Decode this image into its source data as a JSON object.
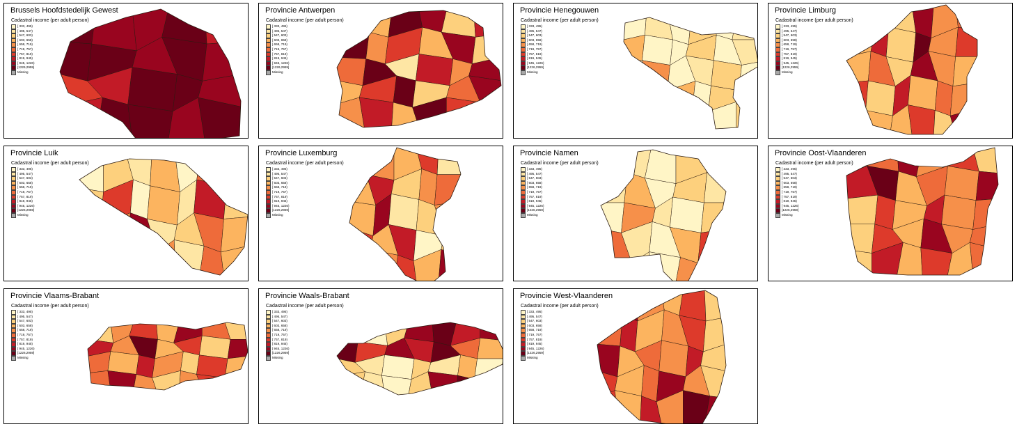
{
  "figure": {
    "legend_title": "Cadastral income (per adult person)",
    "legend": [
      {
        "label": "[ 333, 495)",
        "color": "#fff5c6"
      },
      {
        "label": "[ 495, 547)",
        "color": "#fee6a4"
      },
      {
        "label": "[ 547, 603)",
        "color": "#fdd07d"
      },
      {
        "label": "[ 603, 658)",
        "color": "#fcb45f"
      },
      {
        "label": "[ 658, 719)",
        "color": "#f6904a"
      },
      {
        "label": "[ 719, 757)",
        "color": "#ee6b3a"
      },
      {
        "label": "[ 757, 819)",
        "color": "#dd3a2b"
      },
      {
        "label": "[ 819, 945)",
        "color": "#c21b27"
      },
      {
        "label": "[ 945, 1226)",
        "color": "#99051f"
      },
      {
        "label": "[1226,2959]",
        "color": "#6a0017"
      },
      {
        "label": "Missing",
        "color": "#a8a8a8"
      }
    ]
  },
  "panels": [
    {
      "title": "Brussels Hoofdstedelijk Gewest",
      "region_classes": [
        9,
        8,
        8,
        9,
        7,
        9,
        9,
        8,
        9,
        8,
        6,
        7,
        9,
        9,
        8,
        7,
        9,
        9,
        8
      ]
    },
    {
      "title": "Provincie Antwerpen",
      "region_classes": [
        5,
        3,
        9,
        8,
        2,
        7,
        9,
        4,
        6,
        3,
        8,
        2,
        5,
        9,
        1,
        7,
        4,
        8,
        3,
        6,
        9,
        2,
        5,
        8,
        4,
        7,
        3,
        9,
        6,
        2
      ]
    },
    {
      "title": "Provincie Henegouwen",
      "region_classes": [
        0,
        1,
        0,
        2,
        0,
        1,
        3,
        0,
        0,
        2,
        0,
        1,
        0,
        4,
        0,
        1,
        2,
        0,
        0,
        1,
        3,
        0,
        2,
        1,
        0,
        5,
        0,
        1,
        0,
        2
      ]
    },
    {
      "title": "Provincie Limburg",
      "region_classes": [
        3,
        6,
        2,
        8,
        4,
        5,
        3,
        7,
        2,
        9,
        4,
        6,
        3,
        5,
        2,
        8,
        4,
        3,
        6,
        2,
        7,
        3,
        5,
        4,
        6,
        3
      ]
    },
    {
      "title": "Provincie Luik",
      "region_classes": [
        0,
        2,
        1,
        3,
        0,
        5,
        1,
        2,
        6,
        0,
        3,
        1,
        7,
        2,
        0,
        4,
        8,
        1,
        2,
        5,
        3,
        6,
        2,
        7,
        4,
        1,
        5,
        3
      ]
    },
    {
      "title": "Provincie Luxemburg",
      "region_classes": [
        2,
        4,
        3,
        6,
        1,
        3,
        7,
        2,
        4,
        5,
        3,
        8,
        1,
        2,
        4,
        6,
        3,
        7,
        0,
        2,
        5,
        4,
        6,
        3,
        8
      ]
    },
    {
      "title": "Provincie Namen",
      "region_classes": [
        0,
        1,
        0,
        2,
        0,
        1,
        3,
        0,
        2,
        1,
        0,
        4,
        1,
        0,
        2,
        5,
        1,
        0,
        3,
        6,
        2,
        1,
        0,
        4
      ]
    },
    {
      "title": "Provincie Oost-Vlaanderen",
      "region_classes": [
        3,
        5,
        8,
        4,
        6,
        2,
        7,
        9,
        3,
        5,
        4,
        8,
        2,
        6,
        3,
        7,
        4,
        5,
        2,
        6,
        3,
        8,
        4,
        5,
        2,
        7,
        3,
        6
      ]
    },
    {
      "title": "Provincie Vlaams-Brabant",
      "region_classes": [
        2,
        4,
        6,
        3,
        8,
        5,
        2,
        7,
        4,
        9,
        3,
        6,
        2,
        8,
        5,
        3,
        7,
        4,
        2,
        6,
        3,
        5,
        8,
        4
      ]
    },
    {
      "title": "Provincie Waals-Brabant",
      "region_classes": [
        1,
        0,
        2,
        8,
        9,
        7,
        8,
        9,
        6,
        8,
        7,
        9,
        5,
        3,
        2,
        1,
        0,
        2,
        1,
        3,
        0,
        2
      ]
    },
    {
      "title": "Provincie West-Vlaanderen",
      "region_classes": [
        9,
        8,
        4,
        3,
        6,
        2,
        5,
        7,
        3,
        4,
        6,
        2,
        8,
        3,
        5,
        4,
        7,
        2,
        6,
        3,
        5,
        8,
        4,
        2,
        6,
        3,
        7,
        4
      ]
    }
  ]
}
